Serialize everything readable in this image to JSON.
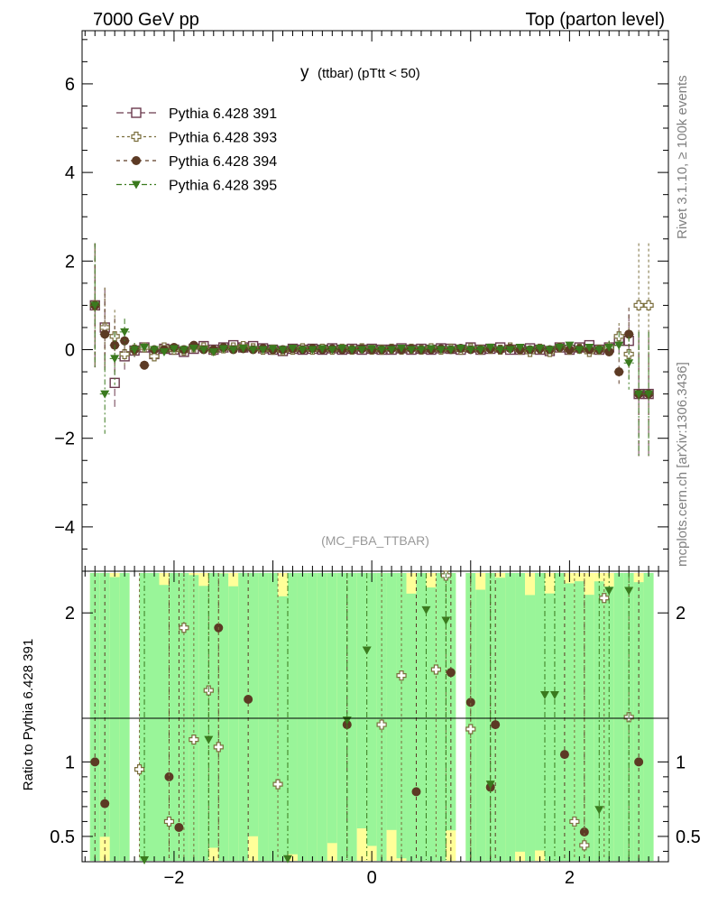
{
  "header": {
    "left_title": "7000 GeV pp",
    "right_title": "Top (parton level)",
    "side_rivet": "Rivet 3.1.10, ≥ 100k events",
    "side_source": "mcplots.cern.ch [arXiv:1306.3436]"
  },
  "chart_data": [
    {
      "type": "scatter",
      "title_main": "y",
      "title_sub": "(ttbar)  (pTtt < 50)",
      "analysis": "(MC_FBA_TTBAR)",
      "xlim": [
        -2.93,
        3.0
      ],
      "ylim": [
        -5.0,
        7.2
      ],
      "yticks": [
        -4,
        -2,
        0,
        2,
        4,
        6
      ],
      "xticks": [
        -2,
        0,
        2
      ],
      "grid": false,
      "legend_position": "top-left",
      "x": [
        -2.8,
        -2.7,
        -2.6,
        -2.5,
        -2.4,
        -2.3,
        -2.2,
        -2.1,
        -2.0,
        -1.9,
        -1.8,
        -1.7,
        -1.6,
        -1.5,
        -1.4,
        -1.3,
        -1.2,
        -1.1,
        -1.0,
        -0.9,
        -0.8,
        -0.7,
        -0.6,
        -0.5,
        -0.4,
        -0.3,
        -0.2,
        -0.1,
        0.0,
        0.1,
        0.2,
        0.3,
        0.4,
        0.5,
        0.6,
        0.7,
        0.8,
        0.9,
        1.0,
        1.1,
        1.2,
        1.3,
        1.4,
        1.5,
        1.6,
        1.7,
        1.8,
        1.9,
        2.0,
        2.1,
        2.2,
        2.3,
        2.4,
        2.5,
        2.6,
        2.7,
        2.8
      ],
      "series": [
        {
          "name": "Pythia 6.428 391",
          "color": "#6b3a4e",
          "marker": "open-square",
          "dash": "8,4",
          "y": [
            1.0,
            0.5,
            -0.75,
            -0.15,
            -0.02,
            0.05,
            -0.1,
            0.02,
            0.0,
            -0.05,
            0.02,
            0.08,
            0.0,
            0.05,
            0.1,
            0.05,
            0.08,
            0.03,
            0.0,
            -0.03,
            0.02,
            0.0,
            0.02,
            0.0,
            0.03,
            0.0,
            0.02,
            0.0,
            0.02,
            0.0,
            0.0,
            0.03,
            0.0,
            0.02,
            0.0,
            0.03,
            0.02,
            0.0,
            0.05,
            0.0,
            0.02,
            0.05,
            0.0,
            0.0,
            0.03,
            0.0,
            -0.03,
            0.05,
            0.0,
            0.05,
            0.1,
            0.0,
            0.05,
            0.2,
            0.2,
            -1.0,
            -1.0
          ],
          "err": [
            1.4,
            0.9,
            0.6,
            0.3,
            0.15,
            0.1,
            0.1,
            0.08,
            0.08,
            0.06,
            0.06,
            0.05,
            0.05,
            0.05,
            0.05,
            0.04,
            0.04,
            0.04,
            0.04,
            0.04,
            0.04,
            0.04,
            0.04,
            0.04,
            0.04,
            0.04,
            0.04,
            0.04,
            0.04,
            0.04,
            0.04,
            0.04,
            0.04,
            0.04,
            0.04,
            0.04,
            0.04,
            0.04,
            0.04,
            0.04,
            0.04,
            0.04,
            0.04,
            0.05,
            0.05,
            0.05,
            0.05,
            0.06,
            0.06,
            0.08,
            0.08,
            0.1,
            0.15,
            0.3,
            0.6,
            1.4,
            1.4
          ]
        },
        {
          "name": "Pythia 6.428 393",
          "color": "#7a6e3c",
          "marker": "open-cross",
          "dash": "3,3",
          "y": [
            1.0,
            0.5,
            0.3,
            -0.1,
            0.0,
            0.05,
            -0.15,
            0.05,
            0.0,
            -0.02,
            0.05,
            0.05,
            -0.02,
            0.03,
            0.05,
            0.08,
            0.03,
            0.0,
            0.0,
            -0.02,
            0.0,
            0.03,
            0.0,
            0.02,
            0.0,
            0.02,
            0.0,
            0.03,
            0.0,
            0.0,
            0.02,
            0.0,
            0.02,
            0.0,
            0.03,
            0.0,
            0.02,
            0.0,
            0.03,
            0.0,
            0.02,
            0.0,
            0.05,
            0.0,
            -0.05,
            0.02,
            -0.05,
            0.05,
            0.0,
            0.02,
            -0.05,
            0.0,
            0.05,
            0.3,
            -0.1,
            1.0,
            1.0
          ],
          "err": [
            1.4,
            0.9,
            0.6,
            0.3,
            0.15,
            0.1,
            0.1,
            0.08,
            0.08,
            0.06,
            0.06,
            0.05,
            0.05,
            0.05,
            0.05,
            0.04,
            0.04,
            0.04,
            0.04,
            0.04,
            0.04,
            0.04,
            0.04,
            0.04,
            0.04,
            0.04,
            0.04,
            0.04,
            0.04,
            0.04,
            0.04,
            0.04,
            0.04,
            0.04,
            0.04,
            0.04,
            0.04,
            0.04,
            0.04,
            0.04,
            0.04,
            0.04,
            0.04,
            0.05,
            0.05,
            0.05,
            0.05,
            0.06,
            0.06,
            0.08,
            0.08,
            0.1,
            0.15,
            0.3,
            0.6,
            1.4,
            1.4
          ]
        },
        {
          "name": "Pythia 6.428 394",
          "color": "#5c3a24",
          "marker": "filled-circle",
          "dash": "4,4",
          "y": [
            1.0,
            0.35,
            0.1,
            0.2,
            0.0,
            -0.35,
            0.0,
            0.0,
            0.05,
            0.0,
            0.1,
            0.0,
            0.0,
            0.05,
            0.0,
            0.02,
            0.0,
            0.03,
            0.0,
            0.0,
            0.02,
            0.0,
            0.03,
            0.0,
            0.02,
            0.0,
            0.0,
            0.02,
            0.0,
            0.0,
            0.02,
            0.0,
            0.02,
            0.0,
            0.0,
            0.02,
            0.0,
            0.03,
            0.0,
            0.0,
            0.02,
            0.0,
            0.03,
            0.0,
            0.0,
            0.02,
            0.0,
            0.05,
            0.0,
            0.02,
            0.0,
            0.0,
            -0.05,
            -0.5,
            0.35,
            -1.0,
            -1.0
          ],
          "err": [
            1.4,
            0.9,
            0.6,
            0.3,
            0.15,
            0.1,
            0.1,
            0.08,
            0.08,
            0.06,
            0.06,
            0.05,
            0.05,
            0.05,
            0.05,
            0.04,
            0.04,
            0.04,
            0.04,
            0.04,
            0.04,
            0.04,
            0.04,
            0.04,
            0.04,
            0.04,
            0.04,
            0.04,
            0.04,
            0.04,
            0.04,
            0.04,
            0.04,
            0.04,
            0.04,
            0.04,
            0.04,
            0.04,
            0.04,
            0.04,
            0.04,
            0.04,
            0.04,
            0.05,
            0.05,
            0.05,
            0.05,
            0.06,
            0.06,
            0.08,
            0.08,
            0.1,
            0.15,
            0.3,
            0.6,
            1.4,
            1.4
          ]
        },
        {
          "name": "Pythia 6.428 395",
          "color": "#3a7a1e",
          "marker": "filled-triangle-down",
          "dash": "6,3,2,3",
          "y": [
            1.0,
            -1.0,
            -0.2,
            0.4,
            0.0,
            0.05,
            0.0,
            -0.05,
            0.02,
            0.0,
            0.03,
            0.0,
            -0.05,
            0.02,
            0.0,
            0.03,
            0.0,
            0.0,
            0.02,
            0.0,
            0.03,
            0.0,
            0.0,
            0.02,
            0.0,
            0.03,
            0.0,
            0.0,
            0.02,
            0.0,
            0.0,
            0.03,
            0.0,
            0.0,
            0.02,
            0.0,
            0.0,
            0.03,
            0.0,
            0.0,
            0.05,
            0.0,
            0.0,
            0.05,
            0.0,
            0.03,
            0.0,
            0.05,
            0.1,
            0.0,
            0.05,
            0.0,
            0.05,
            0.1,
            -0.3,
            -1.0,
            -1.0
          ],
          "err": [
            1.4,
            0.9,
            0.6,
            0.3,
            0.15,
            0.1,
            0.1,
            0.08,
            0.08,
            0.06,
            0.06,
            0.05,
            0.05,
            0.05,
            0.05,
            0.04,
            0.04,
            0.04,
            0.04,
            0.04,
            0.04,
            0.04,
            0.04,
            0.04,
            0.04,
            0.04,
            0.04,
            0.04,
            0.04,
            0.04,
            0.04,
            0.04,
            0.04,
            0.04,
            0.04,
            0.04,
            0.04,
            0.04,
            0.04,
            0.04,
            0.04,
            0.04,
            0.04,
            0.05,
            0.05,
            0.05,
            0.05,
            0.06,
            0.06,
            0.08,
            0.08,
            0.1,
            0.15,
            0.3,
            0.6,
            1.4,
            1.4
          ]
        }
      ]
    },
    {
      "type": "scatter",
      "ylabel": "Ratio to Pythia 6.428 391",
      "reference_line": 1,
      "xlim": [
        -2.93,
        3.0
      ],
      "ylim": [
        0.33,
        2.28
      ],
      "yticks": [
        0.5,
        1,
        2
      ],
      "xticks": [
        -2,
        0,
        2
      ],
      "band_colors": {
        "inner": "#99f599",
        "outer": "#ffff99"
      },
      "points": [
        {
          "series": "Pythia 6.428 394",
          "x": [
            -2.8,
            -2.7,
            -2.05,
            -1.95,
            -1.55,
            -1.25,
            -0.25,
            0.45,
            0.8,
            1.0,
            1.2,
            1.25,
            1.95,
            2.15,
            2.7
          ],
          "y": [
            1.0,
            0.72,
            0.9,
            0.56,
            1.9,
            1.42,
            1.25,
            0.8,
            1.6,
            1.4,
            0.83,
            1.25,
            1.05,
            0.53,
            1.0
          ]
        },
        {
          "series": "Pythia 6.428 393",
          "x": [
            -2.35,
            -2.05,
            -1.9,
            -1.8,
            -1.65,
            -1.55,
            -0.95,
            0.1,
            0.3,
            0.65,
            0.75,
            1.0,
            2.05,
            2.15,
            2.35,
            2.6
          ],
          "y": [
            0.95,
            0.6,
            1.9,
            1.15,
            1.48,
            1.1,
            0.85,
            1.25,
            1.58,
            1.62,
            2.25,
            1.22,
            0.6,
            0.44,
            2.1,
            1.3
          ]
        },
        {
          "series": "Pythia 6.428 395",
          "x": [
            -2.3,
            -1.65,
            -0.85,
            -0.25,
            -0.05,
            0.55,
            0.75,
            1.2,
            1.75,
            1.85,
            2.3,
            2.4,
            2.6
          ],
          "y": [
            0.34,
            1.15,
            0.35,
            1.28,
            1.75,
            2.02,
            1.95,
            0.85,
            1.45,
            1.45,
            0.68,
            2.15,
            2.15
          ]
        }
      ]
    }
  ]
}
